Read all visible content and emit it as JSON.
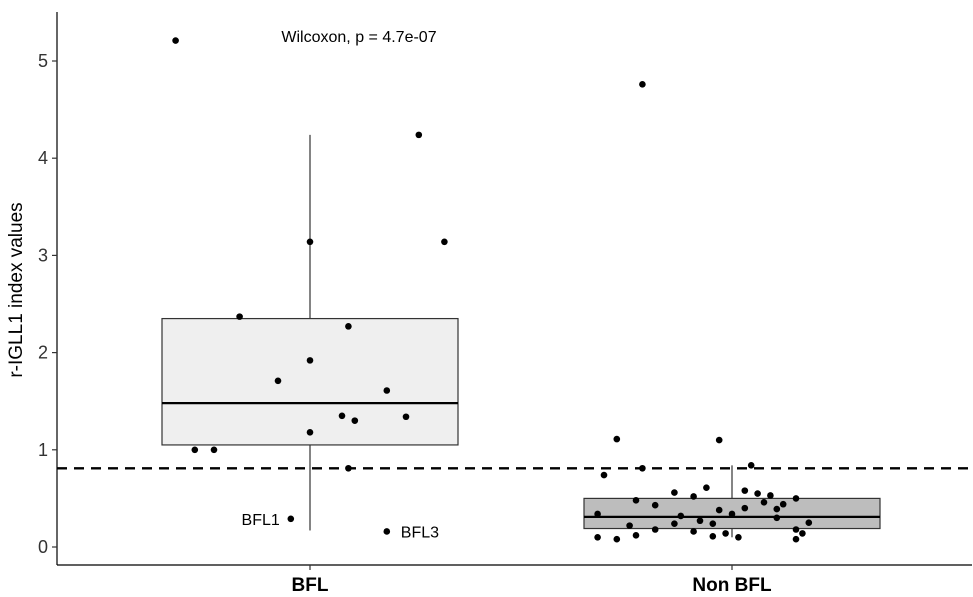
{
  "chart_data": {
    "type": "box",
    "ylabel": "r-IGLL1 index values",
    "xlabel": "",
    "ylim": [
      -0.2,
      5.5
    ],
    "yticks": [
      0,
      1,
      2,
      3,
      4,
      5
    ],
    "categories": [
      "BFL",
      "Non BFL"
    ],
    "threshold": 0.81,
    "annotation": "Wilcoxon, p = 4.7e-07",
    "box_colors": [
      "#efefef",
      "#bdbdbd"
    ],
    "boxes": [
      {
        "category": "BFL",
        "min": 0.17,
        "q1": 1.05,
        "median": 1.48,
        "q3": 2.35,
        "max": 4.24
      },
      {
        "category": "Non BFL",
        "min": 0.1,
        "q1": 0.19,
        "median": 0.31,
        "q3": 0.5,
        "max": 0.84
      }
    ],
    "points": [
      [
        {
          "x": -0.21,
          "y": 5.21
        },
        {
          "x": 0.17,
          "y": 4.24
        },
        {
          "x": 0.21,
          "y": 3.14
        },
        {
          "x": 0.0,
          "y": 3.14
        },
        {
          "x": -0.11,
          "y": 2.37
        },
        {
          "x": 0.06,
          "y": 2.27
        },
        {
          "x": 0.0,
          "y": 1.92
        },
        {
          "x": -0.05,
          "y": 1.71
        },
        {
          "x": 0.12,
          "y": 1.61
        },
        {
          "x": 0.05,
          "y": 1.35
        },
        {
          "x": 0.15,
          "y": 1.34
        },
        {
          "x": 0.07,
          "y": 1.3
        },
        {
          "x": 0.0,
          "y": 1.18
        },
        {
          "x": -0.18,
          "y": 1.0
        },
        {
          "x": -0.15,
          "y": 1.0
        },
        {
          "x": 0.06,
          "y": 0.81
        },
        {
          "x": -0.03,
          "y": 0.29,
          "label": "BFL1"
        },
        {
          "x": 0.12,
          "y": 0.16,
          "label": "BFL3"
        }
      ],
      [
        {
          "x": -0.14,
          "y": 4.76
        },
        {
          "x": -0.18,
          "y": 1.11
        },
        {
          "x": -0.02,
          "y": 1.1
        },
        {
          "x": 0.03,
          "y": 0.84
        },
        {
          "x": -0.14,
          "y": 0.81
        },
        {
          "x": -0.2,
          "y": 0.74
        },
        {
          "x": -0.04,
          "y": 0.61
        },
        {
          "x": 0.02,
          "y": 0.58
        },
        {
          "x": -0.09,
          "y": 0.56
        },
        {
          "x": -0.06,
          "y": 0.52
        },
        {
          "x": 0.04,
          "y": 0.55
        },
        {
          "x": 0.06,
          "y": 0.53
        },
        {
          "x": 0.1,
          "y": 0.5
        },
        {
          "x": -0.15,
          "y": 0.48
        },
        {
          "x": -0.12,
          "y": 0.43
        },
        {
          "x": 0.05,
          "y": 0.46
        },
        {
          "x": 0.08,
          "y": 0.44
        },
        {
          "x": -0.02,
          "y": 0.38
        },
        {
          "x": -0.21,
          "y": 0.34
        },
        {
          "x": 0.0,
          "y": 0.34
        },
        {
          "x": -0.08,
          "y": 0.32
        },
        {
          "x": 0.07,
          "y": 0.3
        },
        {
          "x": -0.05,
          "y": 0.27
        },
        {
          "x": -0.09,
          "y": 0.24
        },
        {
          "x": -0.03,
          "y": 0.24
        },
        {
          "x": 0.12,
          "y": 0.25
        },
        {
          "x": -0.12,
          "y": 0.18
        },
        {
          "x": -0.06,
          "y": 0.16
        },
        {
          "x": -0.01,
          "y": 0.14
        },
        {
          "x": 0.1,
          "y": 0.18
        },
        {
          "x": -0.15,
          "y": 0.12
        },
        {
          "x": -0.03,
          "y": 0.11
        },
        {
          "x": 0.01,
          "y": 0.1
        },
        {
          "x": -0.21,
          "y": 0.1
        },
        {
          "x": -0.18,
          "y": 0.08
        },
        {
          "x": 0.1,
          "y": 0.08
        },
        {
          "x": 0.02,
          "y": 0.4
        },
        {
          "x": 0.07,
          "y": 0.39
        },
        {
          "x": -0.16,
          "y": 0.22
        },
        {
          "x": 0.11,
          "y": 0.14
        }
      ]
    ]
  }
}
